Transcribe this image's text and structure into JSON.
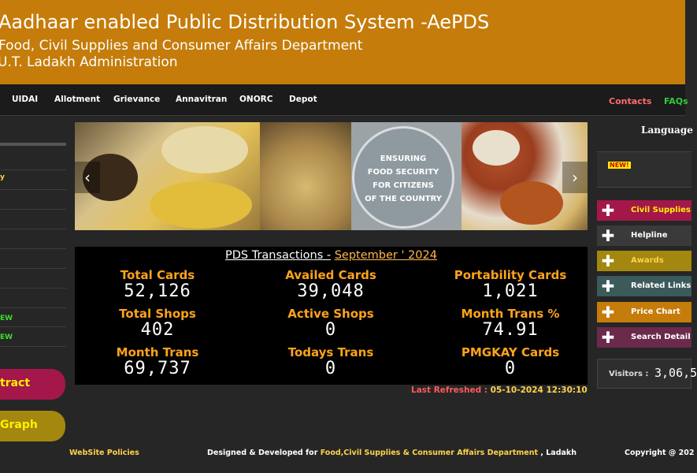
{
  "header": {
    "title": "Aadhaar enabled Public Distribution System -AePDS",
    "subtitle1": "Food, Civil Supplies and Consumer Affairs Department",
    "subtitle2": "U.T. Ladakh Administration"
  },
  "nav": {
    "items": [
      "UIDAI",
      "Allotment",
      "Grievance",
      "Annavitran",
      "ONORC",
      "Depot"
    ],
    "contacts": "Contacts",
    "faqs": "FAQs"
  },
  "left": {
    "extract": "tract",
    "graph": "Graph",
    "new_tag1": "EW",
    "new_tag2": "EW"
  },
  "banner": {
    "text": [
      "ENSURING",
      "FOOD SECURITY",
      "FOR CITIZENS",
      "OF THE COUNTRY"
    ],
    "prev": "‹",
    "next": "›"
  },
  "stats": {
    "title_prefix": "PDS Transactions -",
    "month": "September ' 2024",
    "cells": [
      {
        "label": "Total Cards",
        "value": "52,126"
      },
      {
        "label": "Availed Cards",
        "value": "39,048"
      },
      {
        "label": "Portability Cards",
        "value": "1,021"
      },
      {
        "label": "Total Shops",
        "value": "402"
      },
      {
        "label": "Active Shops",
        "value": "0"
      },
      {
        "label": "Month Trans %",
        "value": "74.91"
      },
      {
        "label": "Month Trans",
        "value": "69,737"
      },
      {
        "label": "Todays Trans",
        "value": "0"
      },
      {
        "label": "PMGKAY Cards",
        "value": "0"
      }
    ],
    "refresh_label": "Last Refreshed :",
    "refresh_value": "05-10-2024  12:30:10"
  },
  "right": {
    "language": "Language",
    "new_tag": "NEW!",
    "buttons": [
      {
        "label": "Civil Supplies",
        "color": "#a3174a",
        "text": "#fff000"
      },
      {
        "label": "Helpline",
        "color": "#3a3a3a",
        "text": "#ffffff"
      },
      {
        "label": "Awards",
        "color": "#a3870f",
        "text": "#ffd24d"
      },
      {
        "label": "Related Links",
        "color": "#3b5a5a",
        "text": "#ffffff"
      },
      {
        "label": "Price Chart",
        "color": "#c57c0a",
        "text": "#ffffff"
      },
      {
        "label": "Search Detail",
        "color": "#6b2a4a",
        "text": "#ffffff"
      }
    ],
    "visitors_label": "Visitors :",
    "visitors_value": "3,06,5"
  },
  "footer": {
    "policies": "WebSite Policies",
    "designed": "Designed & Developed for",
    "dept": "Food,Civil Supplies & Consumer Affairs Department",
    "place": ", Ladakh",
    "copyright": "Copyright @ 202"
  }
}
